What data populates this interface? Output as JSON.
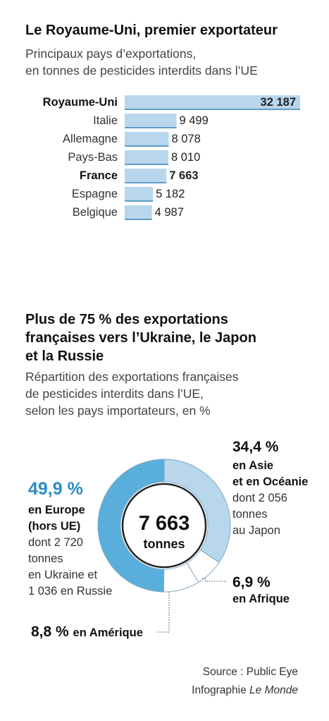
{
  "header": {
    "title1": "Le Royaume-Uni, premier exportateur",
    "subtitle1_line1": "Principaux pays d’exportations,",
    "subtitle1_line2": "en tonnes de pesticides interdits dans l’UE",
    "title2_line1": "Plus de 75 % des exportations",
    "title2_line2": "françaises vers l’Ukraine, le Japon",
    "title2_line3": "et la Russie",
    "subtitle2_line1": "Répartition des exportations françaises",
    "subtitle2_line2": "de pesticides interdits dans l’UE,",
    "subtitle2_line3": "selon les pays importateurs, en %"
  },
  "chart_data": [
    {
      "type": "bar",
      "orientation": "horizontal",
      "categories": [
        "Royaume-Uni",
        "Italie",
        "Allemagne",
        "Pays-Bas",
        "France",
        "Espagne",
        "Belgique"
      ],
      "values": [
        32187,
        9499,
        8078,
        8010,
        7663,
        5182,
        4987
      ],
      "value_labels": [
        "32 187",
        "9 499",
        "8 078",
        "8 010",
        "7 663",
        "5 182",
        "4 987"
      ],
      "highlighted": [
        "Royaume-Uni",
        "France"
      ],
      "bar_color": "#b9d7ec",
      "edge_color": "#3a83b5"
    },
    {
      "type": "pie",
      "donut": true,
      "center_value": "7 663",
      "center_unit": "tonnes",
      "slices": [
        {
          "value": 49.9,
          "pct": "49,9 %",
          "region": "en Europe",
          "region2": "(hors UE)",
          "details": [
            "dont 2 720",
            "tonnes",
            "en Ukraine et",
            "1 036 en Russie"
          ],
          "color": "#5aaedb"
        },
        {
          "value": 34.4,
          "pct": "34,4 %",
          "region": "en Asie",
          "region2": "et en Océanie",
          "details": [
            "dont 2 056",
            "tonnes",
            "au Japon"
          ],
          "color": "#b9d7ec"
        },
        {
          "value": 6.9,
          "pct": "6,9 %",
          "region": "en Afrique",
          "color": "#ffffff"
        },
        {
          "value": 8.8,
          "pct": "8,8 %",
          "region": "en Amérique",
          "color": "#ffffff"
        }
      ],
      "europe_pct_color": "#2a8cc4"
    }
  ],
  "footer": {
    "source": "Source : Public Eye",
    "credit_prefix": "Infographie ",
    "credit_name": "Le Monde"
  }
}
